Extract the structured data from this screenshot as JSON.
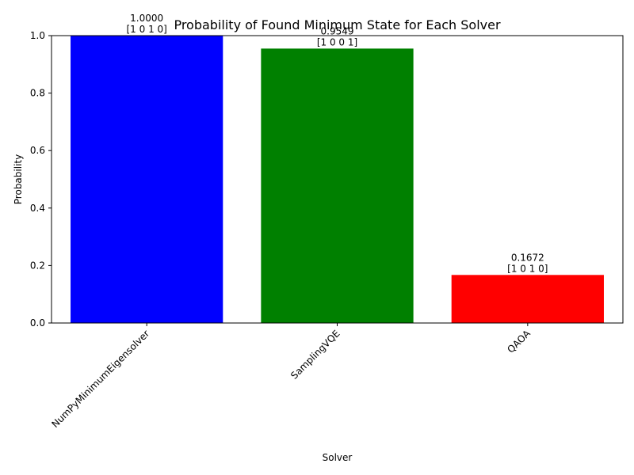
{
  "chart_data": {
    "type": "bar",
    "title": "Probability of Found Minimum State for Each Solver",
    "xlabel": "Solver",
    "ylabel": "Probability",
    "categories": [
      "NumPyMinimumEigensolver",
      "SamplingVQE",
      "QAOA"
    ],
    "values": [
      1.0,
      0.9549,
      0.1672
    ],
    "value_labels": [
      "1.0000",
      "0.9549",
      "0.1672"
    ],
    "state_labels": [
      "[1 0 1 0]",
      "[1 0 0 1]",
      "[1 0 1 0]"
    ],
    "colors": [
      "#0000ff",
      "#008000",
      "#ff0000"
    ],
    "ylim": [
      0,
      1
    ],
    "yticks": [
      0.0,
      0.2,
      0.4,
      0.6,
      0.8,
      1.0
    ],
    "ytick_labels": [
      "0.0",
      "0.2",
      "0.4",
      "0.6",
      "0.8",
      "1.0"
    ],
    "grid": false,
    "legend": "none"
  }
}
